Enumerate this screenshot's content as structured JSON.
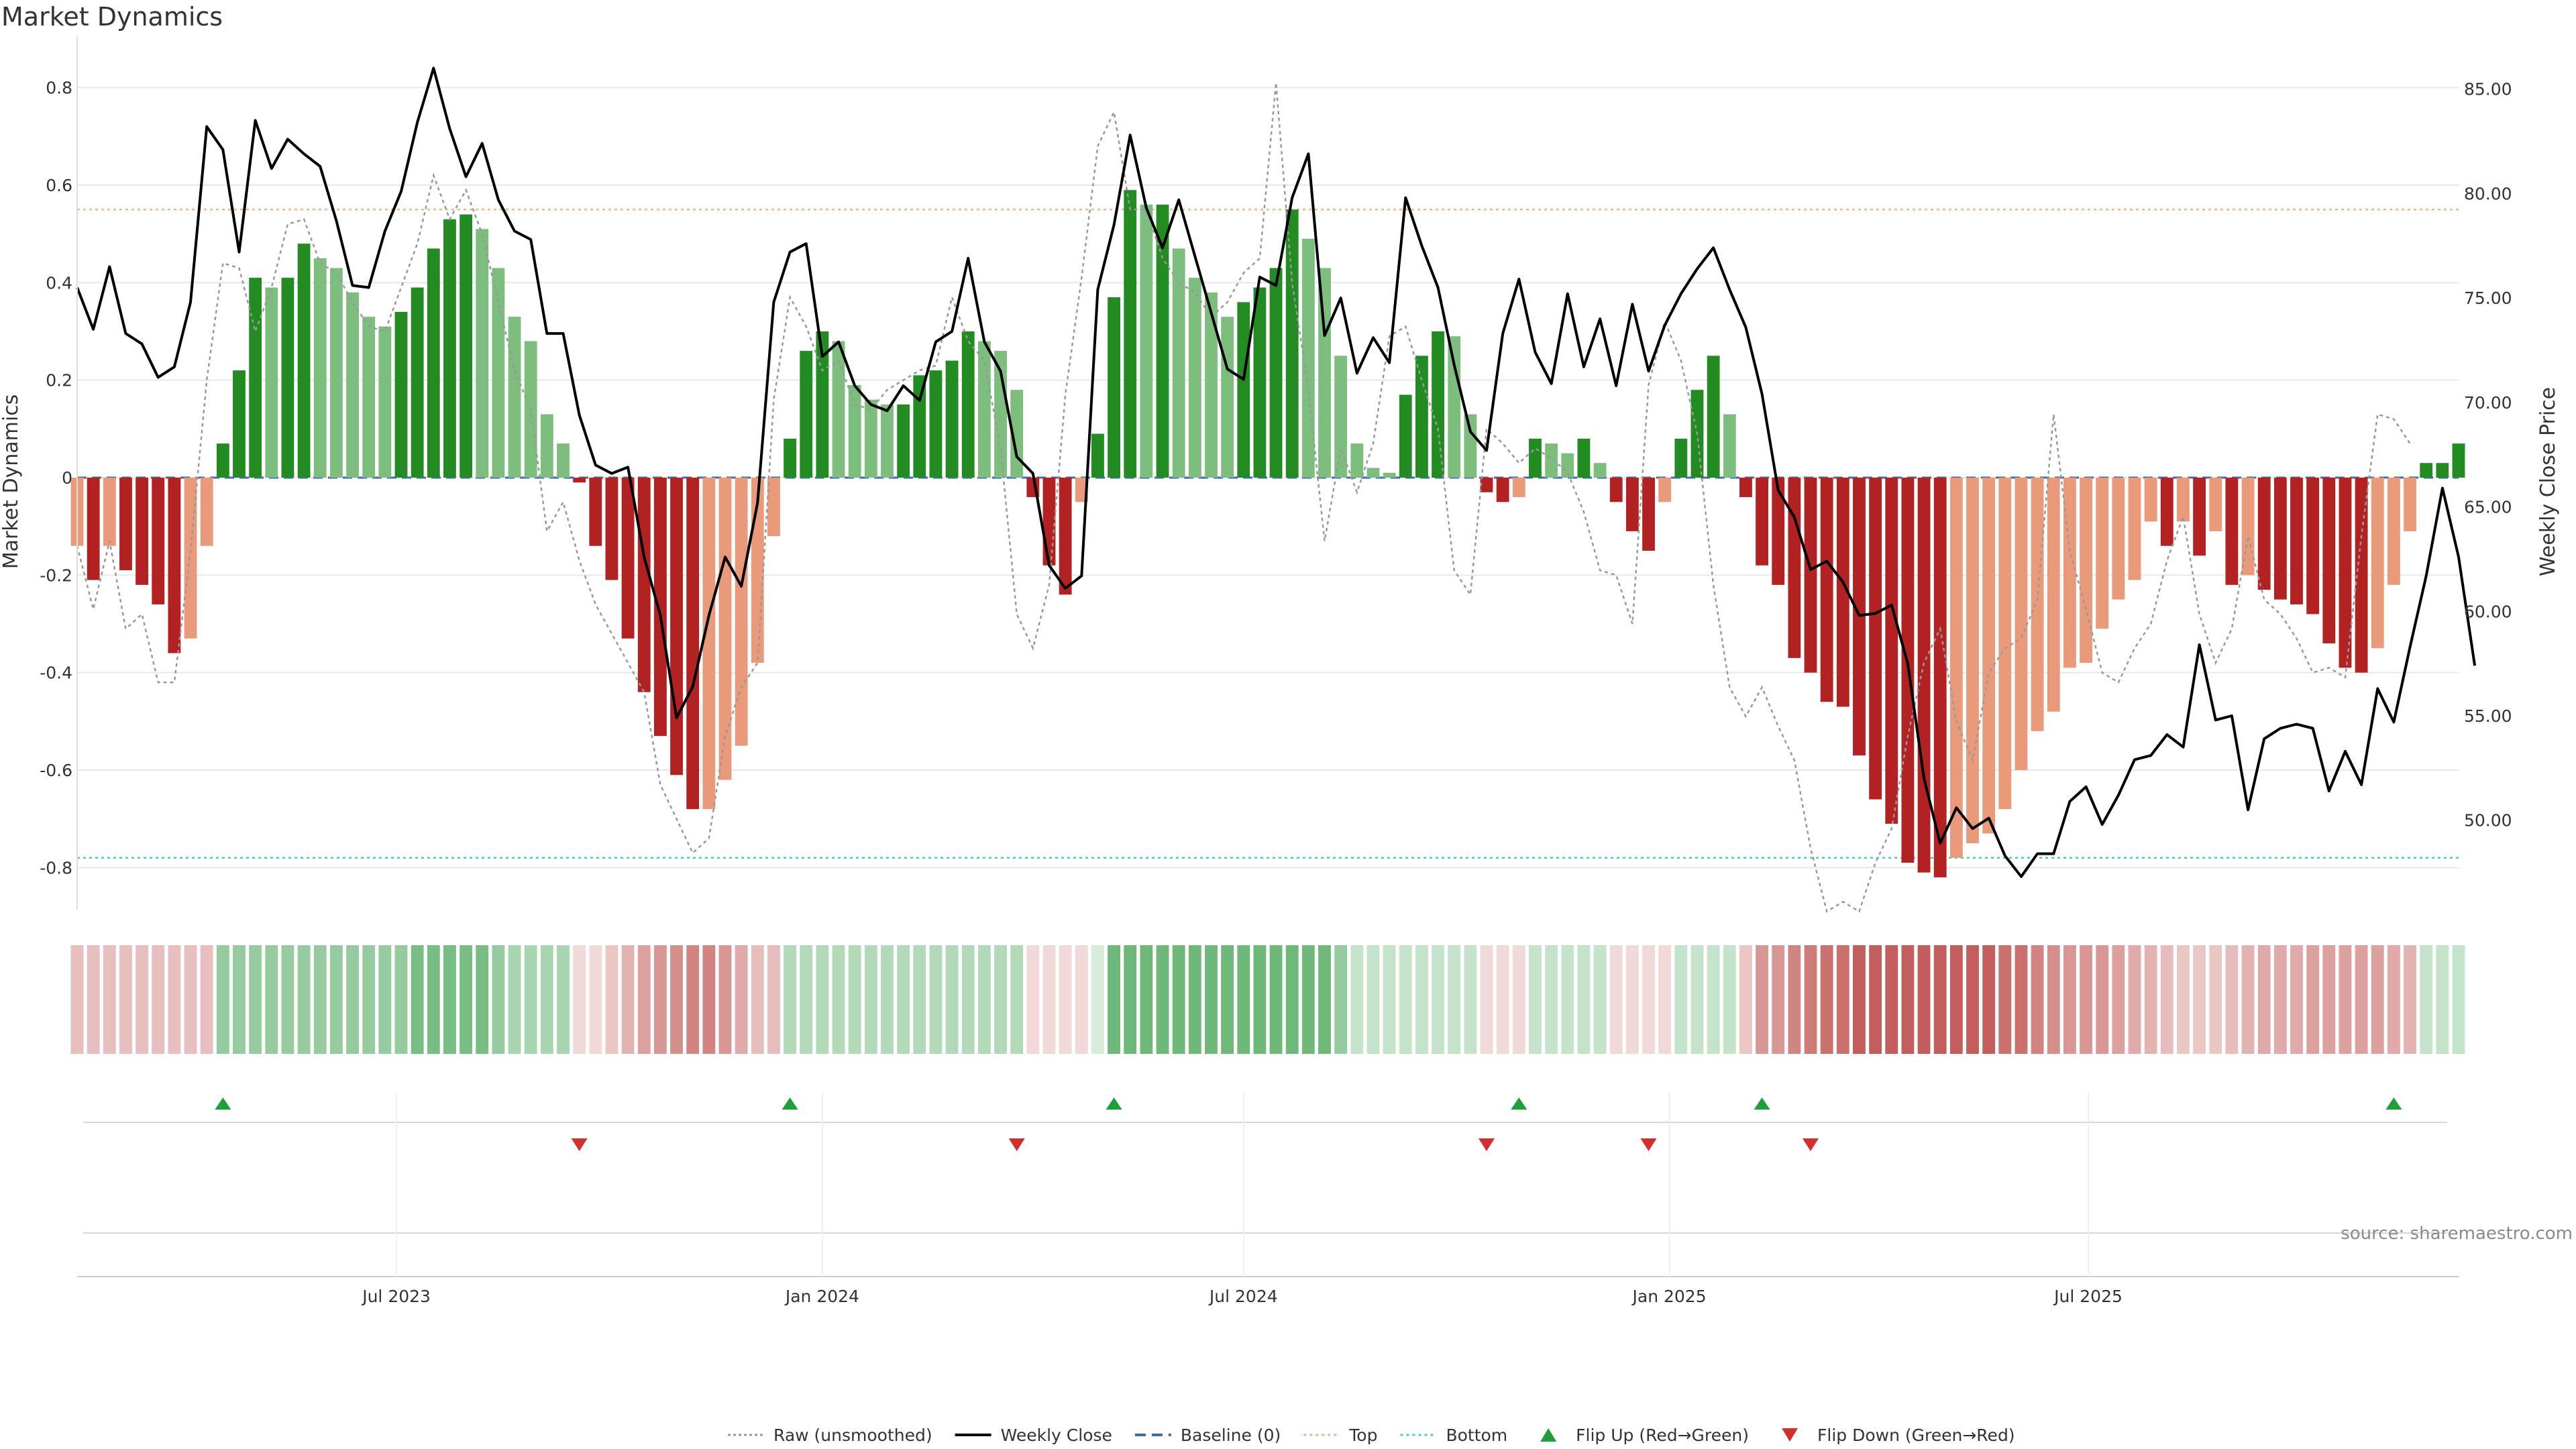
{
  "chart_data": {
    "type": "bar",
    "title": "Market Dynamics",
    "ylabel_left": "Market Dynamics",
    "ylabel_right": "Weekly Close Price",
    "ylim_left": [
      -0.9,
      0.9
    ],
    "ylim_right": [
      45.4,
      87.4
    ],
    "yticks_left": [
      "0.8",
      "0.6",
      "0.4",
      "0.2",
      "0",
      "-0.2",
      "-0.4",
      "-0.6",
      "-0.8"
    ],
    "yticks_right": [
      "85.00",
      "80.00",
      "75.00",
      "70.00",
      "65.00",
      "60.00",
      "55.00",
      "50.00"
    ],
    "x_ticks": [
      "Jul 2023",
      "Jan 2024",
      "Jul 2024",
      "Jan 2025",
      "Jul 2025"
    ],
    "x_tick_dates": [
      "2023-07-01",
      "2024-01-01",
      "2024-07-01",
      "2025-01-01",
      "2025-07-01"
    ],
    "x_start": "2023-02-13",
    "week_days": 7,
    "top_level": 0.55,
    "bottom_level": -0.78,
    "bars": [
      -0.14,
      -0.21,
      -0.14,
      -0.19,
      -0.22,
      -0.26,
      -0.36,
      -0.33,
      -0.14,
      0.07,
      0.22,
      0.41,
      0.39,
      0.41,
      0.48,
      0.45,
      0.43,
      0.38,
      0.33,
      0.31,
      0.34,
      0.39,
      0.47,
      0.53,
      0.54,
      0.51,
      0.43,
      0.33,
      0.28,
      0.13,
      0.07,
      -0.01,
      -0.14,
      -0.21,
      -0.33,
      -0.44,
      -0.53,
      -0.61,
      -0.68,
      -0.68,
      -0.62,
      -0.55,
      -0.38,
      -0.12,
      0.08,
      0.26,
      0.3,
      0.28,
      0.19,
      0.16,
      0.15,
      0.15,
      0.21,
      0.22,
      0.24,
      0.3,
      0.28,
      0.26,
      0.18,
      -0.04,
      -0.18,
      -0.24,
      -0.05,
      0.09,
      0.37,
      0.59,
      0.56,
      0.56,
      0.47,
      0.41,
      0.38,
      0.33,
      0.36,
      0.39,
      0.43,
      0.55,
      0.49,
      0.43,
      0.25,
      0.07,
      0.02,
      0.01,
      0.17,
      0.25,
      0.3,
      0.29,
      0.13,
      -0.03,
      -0.05,
      -0.04,
      0.08,
      0.07,
      0.05,
      0.08,
      0.03,
      -0.05,
      -0.11,
      -0.15,
      -0.05,
      0.08,
      0.18,
      0.25,
      0.13,
      -0.04,
      -0.18,
      -0.22,
      -0.37,
      -0.4,
      -0.46,
      -0.47,
      -0.57,
      -0.66,
      -0.71,
      -0.79,
      -0.81,
      -0.82,
      -0.78,
      -0.75,
      -0.73,
      -0.68,
      -0.6,
      -0.52,
      -0.48,
      -0.39,
      -0.38,
      -0.31,
      -0.25,
      -0.21,
      -0.09,
      -0.14,
      -0.09,
      -0.16,
      -0.11,
      -0.22,
      -0.2,
      -0.23,
      -0.25,
      -0.26,
      -0.28,
      -0.34,
      -0.39,
      -0.4,
      -0.35,
      -0.22,
      -0.11,
      0.03,
      0.03,
      0.07
    ],
    "raw": [
      -0.14,
      -0.27,
      -0.13,
      -0.31,
      -0.28,
      -0.42,
      -0.42,
      -0.15,
      0.2,
      0.44,
      0.43,
      0.3,
      0.39,
      0.52,
      0.53,
      0.44,
      0.42,
      0.36,
      0.31,
      0.3,
      0.39,
      0.48,
      0.62,
      0.53,
      0.59,
      0.5,
      0.36,
      0.22,
      0.14,
      -0.11,
      -0.05,
      -0.17,
      -0.26,
      -0.32,
      -0.38,
      -0.44,
      -0.63,
      -0.7,
      -0.77,
      -0.74,
      -0.53,
      -0.43,
      -0.38,
      0.16,
      0.37,
      0.31,
      0.22,
      0.24,
      0.15,
      0.14,
      0.18,
      0.2,
      0.22,
      0.23,
      0.37,
      0.28,
      0.24,
      0.06,
      -0.28,
      -0.35,
      -0.22,
      0.17,
      0.41,
      0.68,
      0.75,
      0.55,
      0.55,
      0.45,
      0.4,
      0.38,
      0.33,
      0.36,
      0.42,
      0.45,
      0.81,
      0.4,
      0.18,
      -0.13,
      0.06,
      -0.03,
      0.07,
      0.29,
      0.31,
      0.2,
      0.1,
      -0.19,
      -0.24,
      0.1,
      0.07,
      0.03,
      0.06,
      0.04,
      0.01,
      -0.07,
      -0.19,
      -0.2,
      -0.3,
      0.19,
      0.32,
      0.24,
      0.09,
      -0.22,
      -0.43,
      -0.49,
      -0.43,
      -0.51,
      -0.58,
      -0.76,
      -0.89,
      -0.87,
      -0.89,
      -0.79,
      -0.72,
      -0.53,
      -0.38,
      -0.31,
      -0.5,
      -0.58,
      -0.4,
      -0.35,
      -0.33,
      -0.25,
      0.13,
      -0.15,
      -0.27,
      -0.4,
      -0.42,
      -0.35,
      -0.3,
      -0.17,
      -0.08,
      -0.28,
      -0.38,
      -0.31,
      -0.12,
      -0.25,
      -0.28,
      -0.33,
      -0.4,
      -0.39,
      -0.41,
      -0.12,
      0.13,
      0.12,
      0.07
    ],
    "weekly_close": [
      75.5,
      73.5,
      76.5,
      73.3,
      72.8,
      71.2,
      71.7,
      74.8,
      83.2,
      82.1,
      77.2,
      83.5,
      81.2,
      82.6,
      81.9,
      81.3,
      78.7,
      75.6,
      75.5,
      78.2,
      80.1,
      83.4,
      86.0,
      83.1,
      80.8,
      82.4,
      79.7,
      78.2,
      77.8,
      73.3,
      73.3,
      69.4,
      67.0,
      66.6,
      66.9,
      62.6,
      59.8,
      54.9,
      56.4,
      59.8,
      62.6,
      61.2,
      65.2,
      74.8,
      77.2,
      77.6,
      72.2,
      72.9,
      70.8,
      69.9,
      69.6,
      70.8,
      70.1,
      72.9,
      73.4,
      76.9,
      72.9,
      71.5,
      67.4,
      66.6,
      62.2,
      61.1,
      61.7,
      75.4,
      78.5,
      82.8,
      79.3,
      77.4,
      79.7,
      77.0,
      74.3,
      71.6,
      71.1,
      76.0,
      75.6,
      79.8,
      81.9,
      73.2,
      75.0,
      71.4,
      73.1,
      71.9,
      79.8,
      77.5,
      75.5,
      71.8,
      68.6,
      67.7,
      73.3,
      75.9,
      72.4,
      70.9,
      75.2,
      71.7,
      74.0,
      70.8,
      74.7,
      71.5,
      73.7,
      75.2,
      76.4,
      77.4,
      75.4,
      73.6,
      70.4,
      65.8,
      64.5,
      62.0,
      62.4,
      61.4,
      59.8,
      59.9,
      60.3,
      57.5,
      52.0,
      48.9,
      50.6,
      49.6,
      50.1,
      48.3,
      47.3,
      48.4,
      48.4,
      50.9,
      51.6,
      49.8,
      51.2,
      52.9,
      53.1,
      54.1,
      53.5,
      58.4,
      54.8,
      55.0,
      50.5,
      53.9,
      54.4,
      54.6,
      54.4,
      51.4,
      53.3,
      51.7,
      56.3,
      54.7,
      58.3,
      61.7,
      65.9,
      62.6,
      57.4
    ],
    "heat": [
      0.34,
      0.34,
      0.34,
      0.34,
      0.34,
      0.34,
      0.34,
      0.34,
      0.34,
      0.55,
      0.55,
      0.55,
      0.55,
      0.55,
      0.55,
      0.55,
      0.55,
      0.55,
      0.55,
      0.55,
      0.55,
      0.7,
      0.7,
      0.7,
      0.7,
      0.7,
      0.55,
      0.45,
      0.45,
      0.45,
      0.45,
      0.2,
      0.2,
      0.3,
      0.4,
      0.5,
      0.55,
      0.6,
      0.65,
      0.65,
      0.55,
      0.45,
      0.35,
      0.35,
      0.4,
      0.4,
      0.4,
      0.4,
      0.4,
      0.4,
      0.4,
      0.4,
      0.4,
      0.4,
      0.4,
      0.4,
      0.4,
      0.4,
      0.4,
      0.2,
      0.2,
      0.2,
      0.2,
      0.2,
      0.75,
      0.75,
      0.75,
      0.75,
      0.75,
      0.75,
      0.75,
      0.75,
      0.75,
      0.75,
      0.75,
      0.75,
      0.75,
      0.75,
      0.55,
      0.3,
      0.3,
      0.3,
      0.3,
      0.3,
      0.3,
      0.3,
      0.3,
      0.2,
      0.2,
      0.2,
      0.3,
      0.3,
      0.3,
      0.3,
      0.3,
      0.2,
      0.2,
      0.2,
      0.2,
      0.3,
      0.3,
      0.3,
      0.3,
      0.3,
      0.55,
      0.55,
      0.65,
      0.7,
      0.75,
      0.75,
      0.85,
      0.85,
      0.85,
      0.85,
      0.85,
      0.85,
      0.85,
      0.85,
      0.85,
      0.75,
      0.75,
      0.65,
      0.6,
      0.55,
      0.55,
      0.55,
      0.5,
      0.45,
      0.4,
      0.35,
      0.3,
      0.3,
      0.3,
      0.35,
      0.4,
      0.45,
      0.45,
      0.45,
      0.5,
      0.5,
      0.5,
      0.5,
      0.5,
      0.45,
      0.4,
      0.3,
      0.3,
      0.3
    ],
    "flip_up": [
      "2023-04-17",
      "2023-12-18",
      "2024-05-06",
      "2024-10-28",
      "2025-02-10",
      "2025-11-10"
    ],
    "flip_down": [
      "2023-09-18",
      "2024-03-25",
      "2024-10-14",
      "2024-12-23",
      "2025-03-03"
    ],
    "colors": {
      "green_strong": "#228b22",
      "green_weak": "#7dbd7d",
      "red_strong": "#b22222",
      "red_weak": "#e99a7b",
      "heat_green": "#3ea04e",
      "heat_red": "#b8423f",
      "raw_line": "#999999",
      "close_line": "#000000",
      "baseline": "#3b6ea8",
      "top_line": "#f0b28c",
      "bottom_line": "#4fc3d9",
      "flip_up": "#1f9e3a",
      "flip_down": "#d32f2f"
    },
    "legend": {
      "placement": "bottom-center",
      "items": [
        {
          "label": "Raw (unsmoothed)",
          "style": "dotted-gray"
        },
        {
          "label": "Weekly Close",
          "style": "solid-black"
        },
        {
          "label": "Baseline (0)",
          "style": "dashed-blue"
        },
        {
          "label": "Top",
          "style": "dotted-orange"
        },
        {
          "label": "Bottom",
          "style": "dotted-cyan"
        },
        {
          "label": "Flip Up (Red→Green)",
          "style": "triangle-up-green"
        },
        {
          "label": "Flip Down (Green→Red)",
          "style": "triangle-down-red"
        }
      ]
    },
    "source": "source: sharemaestro.com"
  }
}
